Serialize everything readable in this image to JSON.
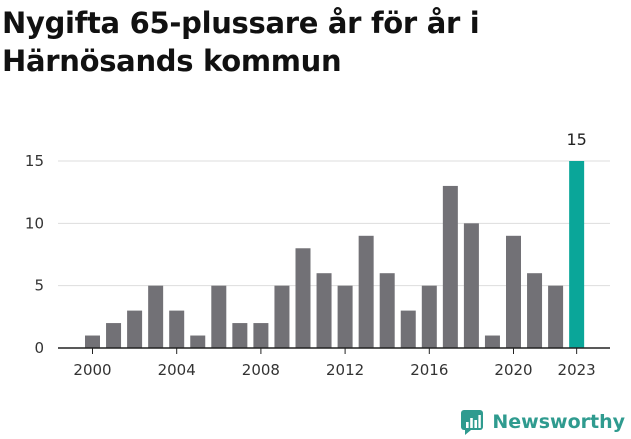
{
  "title": "Nygifta 65-plussare år för år i Härnösands kommun",
  "brand": {
    "name": "Newsworthy",
    "icon": "newsworthy-logo-icon",
    "color": "#2f9b8f"
  },
  "chart_data": {
    "type": "bar",
    "title": "Nygifta 65-plussare år för år i Härnösands kommun",
    "xlabel": "",
    "ylabel": "",
    "categories": [
      2000,
      2001,
      2002,
      2003,
      2004,
      2005,
      2006,
      2007,
      2008,
      2009,
      2010,
      2011,
      2012,
      2013,
      2014,
      2015,
      2016,
      2017,
      2018,
      2019,
      2020,
      2021,
      2022,
      2023
    ],
    "values": [
      1,
      2,
      3,
      5,
      3,
      1,
      5,
      2,
      2,
      5,
      8,
      6,
      5,
      9,
      6,
      3,
      5,
      13,
      10,
      1,
      9,
      6,
      5,
      15
    ],
    "ylim": [
      0,
      15
    ],
    "yticks": [
      0,
      5,
      10,
      15
    ],
    "xticks": [
      2000,
      2004,
      2008,
      2012,
      2016,
      2020,
      2023
    ],
    "grid": true,
    "highlight": {
      "category": 2023,
      "label": "15"
    },
    "colors": {
      "bar": "#727176",
      "highlight": "#0aa699",
      "grid": "#dddddd",
      "axis": "#222222"
    }
  }
}
